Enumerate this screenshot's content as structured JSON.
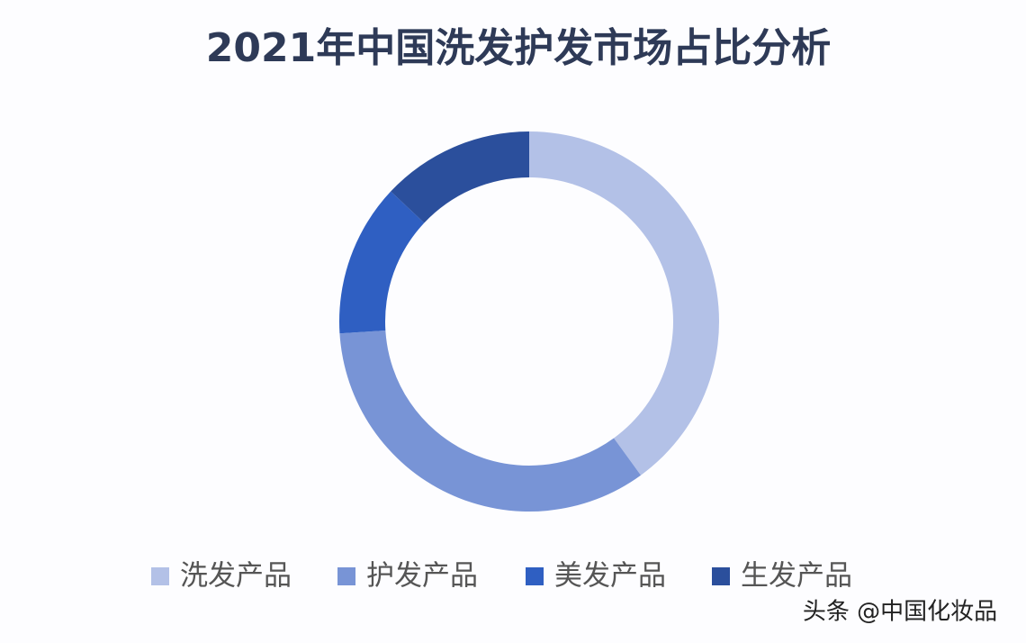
{
  "chart_data": {
    "type": "donut",
    "title": "2021年中国洗发护发市场占比分析",
    "categories": [
      "洗发产品",
      "护发产品",
      "美发产品",
      "生发产品"
    ],
    "values": [
      40,
      34,
      13,
      13
    ],
    "colors": [
      "#b3c1e7",
      "#7894d6",
      "#2f5fc2",
      "#2b4f9c"
    ],
    "legend": "bottom"
  },
  "watermark": "头条 @中国化妆品"
}
